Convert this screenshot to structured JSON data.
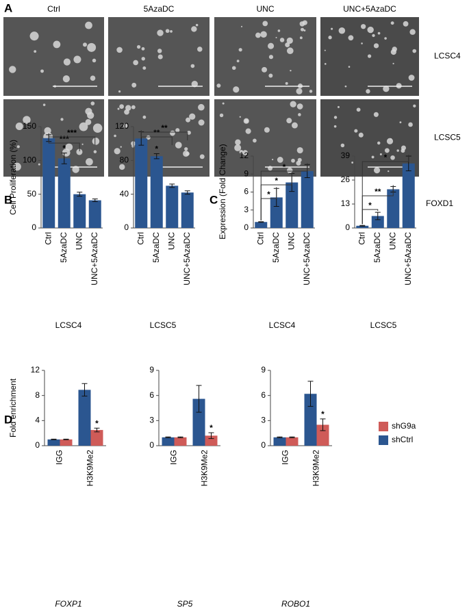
{
  "panel_labels": [
    "A",
    "B",
    "C",
    "D"
  ],
  "panel_a": {
    "columns": [
      "Ctrl",
      "5AzaDC",
      "UNC",
      "UNC+5AzaDC"
    ],
    "rows": [
      "LCSC4",
      "LCSC5"
    ]
  },
  "chart_data": [
    {
      "type": "bar",
      "ylabel": "Cell Proliferation (%)",
      "xlabel": "LCSC4",
      "color": "#2b5690",
      "categories": [
        "Ctrl",
        "5AzaDC",
        "UNC",
        "UNC+5AzaDC"
      ],
      "values": [
        133,
        103,
        50,
        41
      ],
      "errors": [
        5,
        8,
        3,
        2
      ],
      "ylim": [
        0,
        150
      ],
      "yticks": [
        0,
        50,
        100,
        150
      ],
      "annotations": [
        "*",
        "***",
        "***"
      ]
    },
    {
      "type": "bar",
      "xlabel": "LCSC5",
      "color": "#2b5690",
      "categories": [
        "Ctrl",
        "5AzaDC",
        "UNC",
        "UNC+5AzaDC"
      ],
      "values": [
        106,
        85,
        50,
        42
      ],
      "errors": [
        8,
        3,
        2,
        2
      ],
      "ylim": [
        0,
        120
      ],
      "yticks": [
        0,
        40,
        80,
        120
      ],
      "annotations": [
        "*",
        "**",
        "**"
      ]
    },
    {
      "type": "bar",
      "ylabel": "Expression (Fold Change)",
      "xlabel": "LCSC4",
      "color": "#2b5690",
      "categories": [
        "Ctrl",
        "5AzaDC",
        "UNC",
        "UNC+5AzaDC"
      ],
      "values": [
        1,
        5.1,
        7.6,
        9.5
      ],
      "errors": [
        0.05,
        1.5,
        1.5,
        1.1
      ],
      "ylim": [
        0,
        12
      ],
      "yticks": [
        0,
        3,
        6,
        9,
        12
      ],
      "annotations": [
        "*",
        "*",
        "*"
      ]
    },
    {
      "type": "bar",
      "xlabel": "LCSC5",
      "label": "FOXD1",
      "color": "#2b5690",
      "categories": [
        "Ctrl",
        "5AzaDC",
        "UNC",
        "UNC+5AzaDC"
      ],
      "values": [
        1.2,
        6.5,
        21,
        35
      ],
      "errors": [
        0.2,
        2,
        1.5,
        4
      ],
      "ylim": [
        0,
        39
      ],
      "yticks": [
        0,
        13,
        26,
        39
      ],
      "annotations": [
        "*",
        "**",
        "*"
      ]
    },
    {
      "type": "grouped_bar",
      "ylabel": "Fold enrichment",
      "xlabel": "FOXP1",
      "legend": "right",
      "categories": [
        "IGG",
        "H3K9Me2"
      ],
      "series": [
        {
          "name": "shCtrl",
          "color": "#2b5690",
          "values": [
            1,
            8.9
          ],
          "errors": [
            0.05,
            1
          ]
        },
        {
          "name": "shG9a",
          "color": "#cf5b58",
          "values": [
            1,
            2.5
          ],
          "errors": [
            0.05,
            0.3
          ]
        }
      ],
      "ylim": [
        0,
        12
      ],
      "yticks": [
        0,
        4,
        8,
        12
      ],
      "annotations": [
        "*"
      ]
    },
    {
      "type": "grouped_bar",
      "xlabel": "SP5",
      "categories": [
        "IGG",
        "H3K9Me2"
      ],
      "series": [
        {
          "name": "shCtrl",
          "color": "#2b5690",
          "values": [
            1,
            5.6
          ],
          "errors": [
            0.05,
            1.6
          ]
        },
        {
          "name": "shG9a",
          "color": "#cf5b58",
          "values": [
            1,
            1.2
          ],
          "errors": [
            0.05,
            0.35
          ]
        }
      ],
      "ylim": [
        0,
        9
      ],
      "yticks": [
        0,
        3,
        6,
        9
      ],
      "annotations": [
        "*"
      ]
    },
    {
      "type": "grouped_bar",
      "xlabel": "ROBO1",
      "categories": [
        "IGG",
        "H3K9Me2"
      ],
      "series": [
        {
          "name": "shCtrl",
          "color": "#2b5690",
          "values": [
            1,
            6.2
          ],
          "errors": [
            0.05,
            1.5
          ]
        },
        {
          "name": "shG9a",
          "color": "#cf5b58",
          "values": [
            1,
            2.5
          ],
          "errors": [
            0.05,
            0.7
          ]
        }
      ],
      "ylim": [
        0,
        9
      ],
      "yticks": [
        0,
        3,
        6,
        9
      ],
      "annotations": [
        "*"
      ]
    }
  ]
}
